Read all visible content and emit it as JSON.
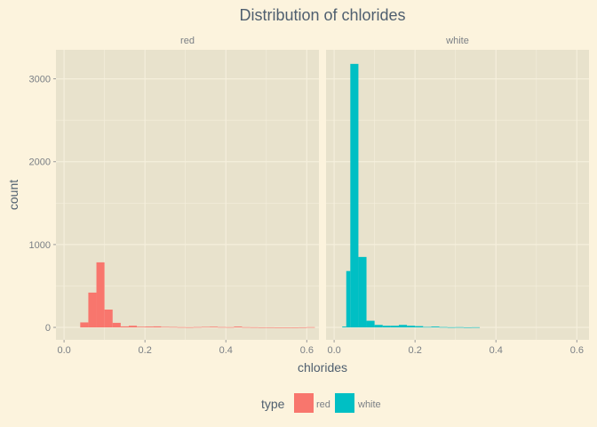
{
  "chart_data": {
    "type": "bar",
    "title": "Distribution of  chlorides",
    "xlabel": "chlorides",
    "ylabel": "count",
    "xlim": [
      -0.02,
      0.63
    ],
    "ylim": [
      -150,
      3350
    ],
    "x_ticks": [
      0.0,
      0.2,
      0.4,
      0.6
    ],
    "x_tick_labels": [
      "0.0",
      "0.2",
      "0.4",
      "0.6"
    ],
    "y_ticks": [
      0,
      1000,
      2000,
      3000
    ],
    "y_tick_labels": [
      "0",
      "1000",
      "2000",
      "3000"
    ],
    "bin_width": 0.02,
    "grid": true,
    "legend": {
      "title": "type",
      "position": "bottom",
      "items": [
        {
          "label": "red",
          "color": "#f8766d"
        },
        {
          "label": "white",
          "color": "#00bfc4"
        }
      ]
    },
    "facets": [
      {
        "label": "red",
        "color": "#f8766d",
        "bins": [
          {
            "x": 0.04,
            "count": 60
          },
          {
            "x": 0.06,
            "count": 420
          },
          {
            "x": 0.08,
            "count": 785
          },
          {
            "x": 0.1,
            "count": 215
          },
          {
            "x": 0.12,
            "count": 55
          },
          {
            "x": 0.14,
            "count": 12
          },
          {
            "x": 0.16,
            "count": 20
          },
          {
            "x": 0.18,
            "count": 8
          },
          {
            "x": 0.2,
            "count": 10
          },
          {
            "x": 0.22,
            "count": 12
          },
          {
            "x": 0.24,
            "count": 6
          },
          {
            "x": 0.26,
            "count": 5
          },
          {
            "x": 0.28,
            "count": 3
          },
          {
            "x": 0.3,
            "count": 2
          },
          {
            "x": 0.32,
            "count": 4
          },
          {
            "x": 0.34,
            "count": 6
          },
          {
            "x": 0.36,
            "count": 8
          },
          {
            "x": 0.38,
            "count": 4
          },
          {
            "x": 0.4,
            "count": 3
          },
          {
            "x": 0.42,
            "count": 10
          },
          {
            "x": 0.44,
            "count": 3
          },
          {
            "x": 0.46,
            "count": 2
          },
          {
            "x": 0.48,
            "count": 1
          },
          {
            "x": 0.5,
            "count": 1
          },
          {
            "x": 0.52,
            "count": 0
          },
          {
            "x": 0.54,
            "count": 0
          },
          {
            "x": 0.56,
            "count": 0
          },
          {
            "x": 0.58,
            "count": 1
          },
          {
            "x": 0.6,
            "count": 3
          }
        ]
      },
      {
        "label": "white",
        "color": "#00bfc4",
        "bins": [
          {
            "x": 0.02,
            "count": 10
          },
          {
            "x": 0.03,
            "count": 680
          },
          {
            "x": 0.04,
            "count": 3180
          },
          {
            "x": 0.06,
            "count": 850
          },
          {
            "x": 0.08,
            "count": 80
          },
          {
            "x": 0.1,
            "count": 30
          },
          {
            "x": 0.12,
            "count": 20
          },
          {
            "x": 0.14,
            "count": 20
          },
          {
            "x": 0.16,
            "count": 30
          },
          {
            "x": 0.18,
            "count": 20
          },
          {
            "x": 0.2,
            "count": 15
          },
          {
            "x": 0.22,
            "count": 5
          },
          {
            "x": 0.24,
            "count": 10
          },
          {
            "x": 0.26,
            "count": 4
          },
          {
            "x": 0.28,
            "count": 2
          },
          {
            "x": 0.3,
            "count": 3
          },
          {
            "x": 0.32,
            "count": 1
          },
          {
            "x": 0.34,
            "count": 2
          }
        ]
      }
    ]
  },
  "colors": {
    "page_background": "#fcf3dd",
    "panel_background": "#e8e2cc",
    "grid": "#f5efdc"
  }
}
